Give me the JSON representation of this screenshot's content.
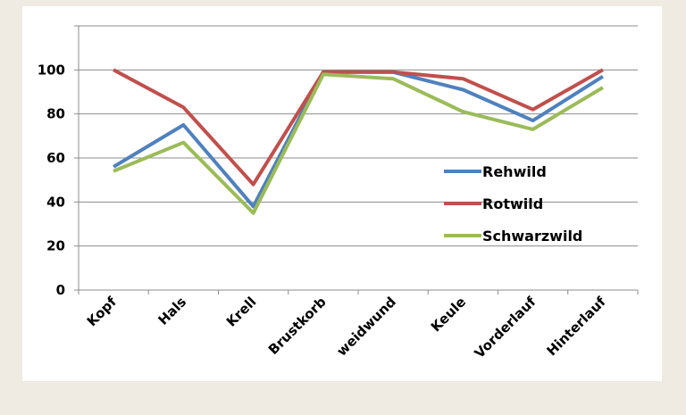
{
  "chart_data": {
    "type": "line",
    "title": "",
    "xlabel": "",
    "ylabel": "",
    "ylim": [
      0,
      120
    ],
    "yticks": [
      0,
      20,
      40,
      60,
      80,
      100
    ],
    "grid": true,
    "legend_position": "right",
    "categories": [
      "Kopf",
      "Hals",
      "Krell",
      "Brustkorb",
      "weidwund",
      "Keule",
      "Vorderlauf",
      "Hinterlauf"
    ],
    "series": [
      {
        "name": "Rehwild",
        "color": "#4f81bd",
        "values": [
          56,
          75,
          38,
          99,
          99,
          91,
          77,
          97
        ]
      },
      {
        "name": "Rotwild",
        "color": "#c0504d",
        "values": [
          100,
          83,
          48,
          99,
          99,
          96,
          82,
          100
        ]
      },
      {
        "name": "Schwarzwild",
        "color": "#9bbb59",
        "values": [
          54,
          67,
          35,
          98,
          96,
          81,
          73,
          92
        ]
      }
    ]
  }
}
